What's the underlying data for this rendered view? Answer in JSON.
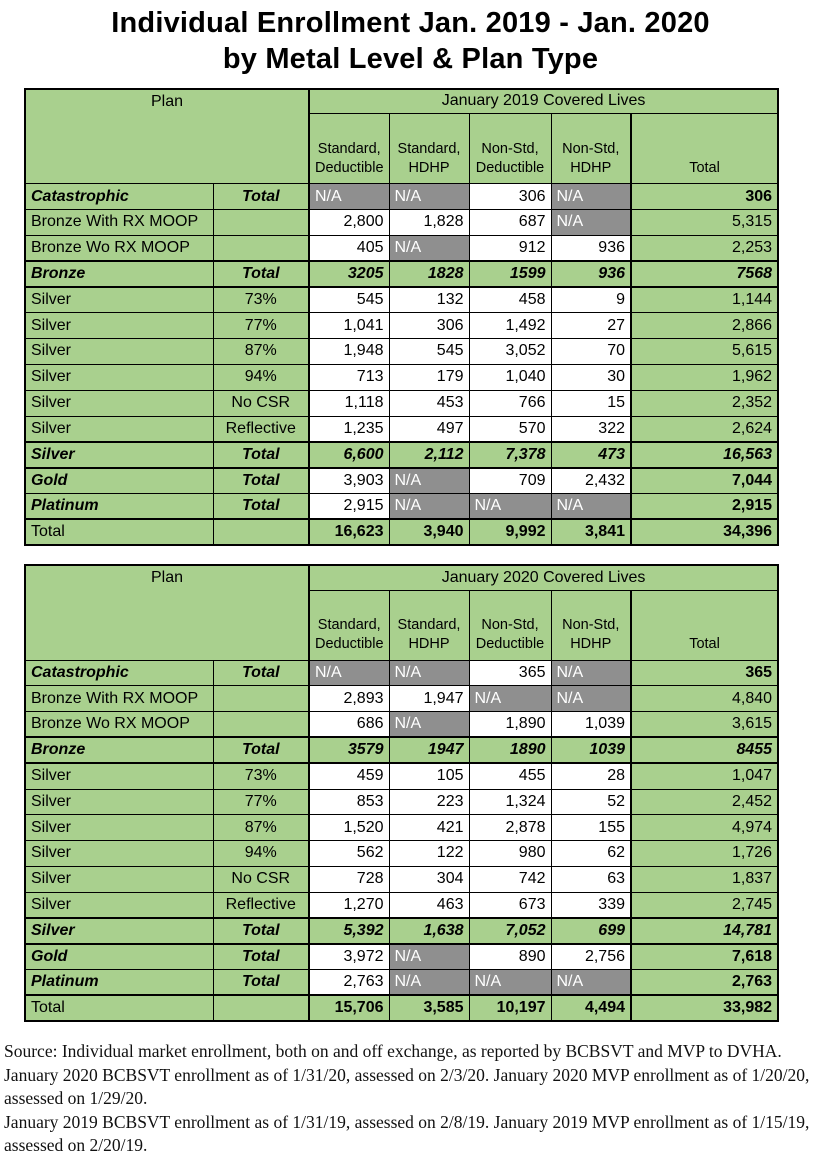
{
  "title": {
    "line1": "Individual Enrollment Jan. 2019 - Jan. 2020",
    "line2": "by Metal Level & Plan Type"
  },
  "colors": {
    "green": "#a9d08e",
    "gray": "#8f8f8f",
    "na_text": "#ffffff",
    "border": "#000000"
  },
  "tables": [
    {
      "plan_header": "Plan",
      "covered_header": "January 2019 Covered Lives",
      "columns": [
        "Standard,\nDeductible",
        "Standard,\nHDHP",
        "Non-Std,\nDeductible",
        "Non-Std,\nHDHP",
        "Total"
      ],
      "rows": [
        {
          "label": "Catastrophic",
          "sub": "Total",
          "em": true,
          "kind": "plain",
          "cells": [
            {
              "v": "N/A",
              "t": "na"
            },
            {
              "v": "N/A",
              "t": "na"
            },
            {
              "v": "306",
              "t": "num"
            },
            {
              "v": "N/A",
              "t": "na"
            }
          ],
          "total": {
            "v": "306",
            "t": "tot"
          }
        },
        {
          "label": "Bronze With RX MOOP",
          "sub": "",
          "em": false,
          "kind": "plain",
          "cells": [
            {
              "v": "2,800",
              "t": "num"
            },
            {
              "v": "1,828",
              "t": "num"
            },
            {
              "v": "687",
              "t": "num"
            },
            {
              "v": "N/A",
              "t": "na"
            }
          ],
          "total": {
            "v": "5,315",
            "t": "totp"
          }
        },
        {
          "label": "Bronze Wo RX MOOP",
          "sub": "",
          "em": false,
          "kind": "plain",
          "cells": [
            {
              "v": "405",
              "t": "num"
            },
            {
              "v": "N/A",
              "t": "na"
            },
            {
              "v": "912",
              "t": "num"
            },
            {
              "v": "936",
              "t": "num"
            }
          ],
          "total": {
            "v": "2,253",
            "t": "totp"
          }
        },
        {
          "label": "Bronze",
          "sub": "Total",
          "em": true,
          "kind": "subtotal",
          "cells": [
            {
              "v": "3205",
              "t": "sub"
            },
            {
              "v": "1828",
              "t": "sub"
            },
            {
              "v": "1599",
              "t": "sub"
            },
            {
              "v": "936",
              "t": "sub"
            }
          ],
          "total": {
            "v": "7568",
            "t": "sub"
          }
        },
        {
          "label": "Silver",
          "sub": "73%",
          "em": false,
          "kind": "plain",
          "cells": [
            {
              "v": "545",
              "t": "num"
            },
            {
              "v": "132",
              "t": "num"
            },
            {
              "v": "458",
              "t": "num"
            },
            {
              "v": "9",
              "t": "num"
            }
          ],
          "total": {
            "v": "1,144",
            "t": "totp"
          }
        },
        {
          "label": "Silver",
          "sub": "77%",
          "em": false,
          "kind": "plain",
          "cells": [
            {
              "v": "1,041",
              "t": "num"
            },
            {
              "v": "306",
              "t": "num"
            },
            {
              "v": "1,492",
              "t": "num"
            },
            {
              "v": "27",
              "t": "num"
            }
          ],
          "total": {
            "v": "2,866",
            "t": "totp"
          }
        },
        {
          "label": "Silver",
          "sub": "87%",
          "em": false,
          "kind": "plain",
          "cells": [
            {
              "v": "1,948",
              "t": "num"
            },
            {
              "v": "545",
              "t": "num"
            },
            {
              "v": "3,052",
              "t": "num"
            },
            {
              "v": "70",
              "t": "num"
            }
          ],
          "total": {
            "v": "5,615",
            "t": "totp"
          }
        },
        {
          "label": "Silver",
          "sub": "94%",
          "em": false,
          "kind": "plain",
          "cells": [
            {
              "v": "713",
              "t": "num"
            },
            {
              "v": "179",
              "t": "num"
            },
            {
              "v": "1,040",
              "t": "num"
            },
            {
              "v": "30",
              "t": "num"
            }
          ],
          "total": {
            "v": "1,962",
            "t": "totp"
          }
        },
        {
          "label": "Silver",
          "sub": "No CSR",
          "em": false,
          "kind": "plain",
          "cells": [
            {
              "v": "1,118",
              "t": "num"
            },
            {
              "v": "453",
              "t": "num"
            },
            {
              "v": "766",
              "t": "num"
            },
            {
              "v": "15",
              "t": "num"
            }
          ],
          "total": {
            "v": "2,352",
            "t": "totp"
          }
        },
        {
          "label": "Silver",
          "sub": "Reflective",
          "em": false,
          "kind": "plain",
          "cells": [
            {
              "v": "1,235",
              "t": "num"
            },
            {
              "v": "497",
              "t": "num"
            },
            {
              "v": "570",
              "t": "num"
            },
            {
              "v": "322",
              "t": "num"
            }
          ],
          "total": {
            "v": "2,624",
            "t": "totp"
          }
        },
        {
          "label": "Silver",
          "sub": "Total",
          "em": true,
          "kind": "subtotal",
          "cells": [
            {
              "v": "6,600",
              "t": "sub"
            },
            {
              "v": "2,112",
              "t": "sub"
            },
            {
              "v": "7,378",
              "t": "sub"
            },
            {
              "v": "473",
              "t": "sub"
            }
          ],
          "total": {
            "v": "16,563",
            "t": "sub"
          }
        },
        {
          "label": "Gold",
          "sub": "Total",
          "em": true,
          "kind": "plain",
          "cells": [
            {
              "v": "3,903",
              "t": "num"
            },
            {
              "v": "N/A",
              "t": "na"
            },
            {
              "v": "709",
              "t": "num"
            },
            {
              "v": "2,432",
              "t": "num"
            }
          ],
          "total": {
            "v": "7,044",
            "t": "tot"
          }
        },
        {
          "label": "Platinum",
          "sub": "Total",
          "em": true,
          "kind": "plain",
          "cells": [
            {
              "v": "2,915",
              "t": "num"
            },
            {
              "v": "N/A",
              "t": "na"
            },
            {
              "v": "N/A",
              "t": "na"
            },
            {
              "v": "N/A",
              "t": "na"
            }
          ],
          "total": {
            "v": "2,915",
            "t": "tot"
          }
        },
        {
          "label": "Total",
          "sub": "",
          "em": false,
          "kind": "grand",
          "cells": [
            {
              "v": "16,623",
              "t": "tot"
            },
            {
              "v": "3,940",
              "t": "tot"
            },
            {
              "v": "9,992",
              "t": "tot"
            },
            {
              "v": "3,841",
              "t": "tot"
            }
          ],
          "total": {
            "v": "34,396",
            "t": "tot"
          }
        }
      ]
    },
    {
      "plan_header": "Plan",
      "covered_header": "January 2020 Covered Lives",
      "columns": [
        "Standard,\nDeductible",
        "Standard,\nHDHP",
        "Non-Std,\nDeductible",
        "Non-Std,\nHDHP",
        "Total"
      ],
      "rows": [
        {
          "label": "Catastrophic",
          "sub": "Total",
          "em": true,
          "kind": "plain",
          "cells": [
            {
              "v": "N/A",
              "t": "na"
            },
            {
              "v": "N/A",
              "t": "na"
            },
            {
              "v": "365",
              "t": "num"
            },
            {
              "v": "N/A",
              "t": "na"
            }
          ],
          "total": {
            "v": "365",
            "t": "tot"
          }
        },
        {
          "label": "Bronze With RX MOOP",
          "sub": "",
          "em": false,
          "kind": "plain",
          "cells": [
            {
              "v": "2,893",
              "t": "num"
            },
            {
              "v": "1,947",
              "t": "num"
            },
            {
              "v": "N/A",
              "t": "na"
            },
            {
              "v": "N/A",
              "t": "na"
            }
          ],
          "total": {
            "v": "4,840",
            "t": "totp"
          }
        },
        {
          "label": "Bronze Wo RX MOOP",
          "sub": "",
          "em": false,
          "kind": "plain",
          "cells": [
            {
              "v": "686",
              "t": "num"
            },
            {
              "v": "N/A",
              "t": "na"
            },
            {
              "v": "1,890",
              "t": "num"
            },
            {
              "v": "1,039",
              "t": "num"
            }
          ],
          "total": {
            "v": "3,615",
            "t": "totp"
          }
        },
        {
          "label": "Bronze",
          "sub": "Total",
          "em": true,
          "kind": "subtotal",
          "cells": [
            {
              "v": "3579",
              "t": "sub"
            },
            {
              "v": "1947",
              "t": "sub"
            },
            {
              "v": "1890",
              "t": "sub"
            },
            {
              "v": "1039",
              "t": "sub"
            }
          ],
          "total": {
            "v": "8455",
            "t": "sub"
          }
        },
        {
          "label": "Silver",
          "sub": "73%",
          "em": false,
          "kind": "plain",
          "cells": [
            {
              "v": "459",
              "t": "num"
            },
            {
              "v": "105",
              "t": "num"
            },
            {
              "v": "455",
              "t": "num"
            },
            {
              "v": "28",
              "t": "num"
            }
          ],
          "total": {
            "v": "1,047",
            "t": "totp"
          }
        },
        {
          "label": "Silver",
          "sub": "77%",
          "em": false,
          "kind": "plain",
          "cells": [
            {
              "v": "853",
              "t": "num"
            },
            {
              "v": "223",
              "t": "num"
            },
            {
              "v": "1,324",
              "t": "num"
            },
            {
              "v": "52",
              "t": "num"
            }
          ],
          "total": {
            "v": "2,452",
            "t": "totp"
          }
        },
        {
          "label": "Silver",
          "sub": "87%",
          "em": false,
          "kind": "plain",
          "cells": [
            {
              "v": "1,520",
              "t": "num"
            },
            {
              "v": "421",
              "t": "num"
            },
            {
              "v": "2,878",
              "t": "num"
            },
            {
              "v": "155",
              "t": "num"
            }
          ],
          "total": {
            "v": "4,974",
            "t": "totp"
          }
        },
        {
          "label": "Silver",
          "sub": "94%",
          "em": false,
          "kind": "plain",
          "cells": [
            {
              "v": "562",
              "t": "num"
            },
            {
              "v": "122",
              "t": "num"
            },
            {
              "v": "980",
              "t": "num"
            },
            {
              "v": "62",
              "t": "num"
            }
          ],
          "total": {
            "v": "1,726",
            "t": "totp"
          }
        },
        {
          "label": "Silver",
          "sub": "No CSR",
          "em": false,
          "kind": "plain",
          "cells": [
            {
              "v": "728",
              "t": "num"
            },
            {
              "v": "304",
              "t": "num"
            },
            {
              "v": "742",
              "t": "num"
            },
            {
              "v": "63",
              "t": "num"
            }
          ],
          "total": {
            "v": "1,837",
            "t": "totp"
          }
        },
        {
          "label": "Silver",
          "sub": "Reflective",
          "em": false,
          "kind": "plain",
          "cells": [
            {
              "v": "1,270",
              "t": "num"
            },
            {
              "v": "463",
              "t": "num"
            },
            {
              "v": "673",
              "t": "num"
            },
            {
              "v": "339",
              "t": "num"
            }
          ],
          "total": {
            "v": "2,745",
            "t": "totp"
          }
        },
        {
          "label": "Silver",
          "sub": "Total",
          "em": true,
          "kind": "subtotal",
          "cells": [
            {
              "v": "5,392",
              "t": "sub"
            },
            {
              "v": "1,638",
              "t": "sub"
            },
            {
              "v": "7,052",
              "t": "sub"
            },
            {
              "v": "699",
              "t": "sub"
            }
          ],
          "total": {
            "v": "14,781",
            "t": "sub"
          }
        },
        {
          "label": "Gold",
          "sub": "Total",
          "em": true,
          "kind": "plain",
          "cells": [
            {
              "v": "3,972",
              "t": "num"
            },
            {
              "v": "N/A",
              "t": "na"
            },
            {
              "v": "890",
              "t": "num"
            },
            {
              "v": "2,756",
              "t": "num"
            }
          ],
          "total": {
            "v": "7,618",
            "t": "tot"
          }
        },
        {
          "label": "Platinum",
          "sub": "Total",
          "em": true,
          "kind": "plain",
          "cells": [
            {
              "v": "2,763",
              "t": "num"
            },
            {
              "v": "N/A",
              "t": "na"
            },
            {
              "v": "N/A",
              "t": "na"
            },
            {
              "v": "N/A",
              "t": "na"
            }
          ],
          "total": {
            "v": "2,763",
            "t": "tot"
          }
        },
        {
          "label": "Total",
          "sub": "",
          "em": false,
          "kind": "grand",
          "cells": [
            {
              "v": "15,706",
              "t": "tot"
            },
            {
              "v": "3,585",
              "t": "tot"
            },
            {
              "v": "10,197",
              "t": "tot"
            },
            {
              "v": "4,494",
              "t": "tot"
            }
          ],
          "total": {
            "v": "33,982",
            "t": "tot"
          }
        }
      ]
    }
  ],
  "footnotes": [
    "Source: Individual market enrollment, both on and off exchange, as reported by BCBSVT and MVP to DVHA.",
    "January 2020 BCBSVT enrollment as of 1/31/20, assessed on 2/3/20. January 2020 MVP enrollment as of 1/20/20, assessed on 1/29/20.",
    "January 2019 BCBSVT enrollment as of 1/31/19, assessed on 2/8/19. January 2019 MVP enrollment as of 1/15/19, assessed on 2/20/19."
  ]
}
